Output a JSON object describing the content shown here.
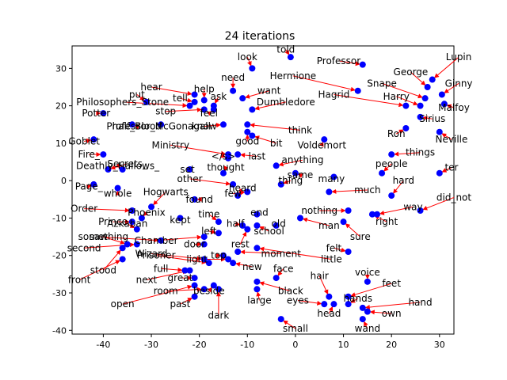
{
  "chart_data": {
    "type": "scatter",
    "title": "24 iterations",
    "xlabel": "",
    "ylabel": "",
    "xlim": [
      -46.5,
      33
    ],
    "ylim": [
      -41,
      36
    ],
    "x_ticks": [
      -40,
      -30,
      -20,
      -10,
      0,
      10,
      20,
      30
    ],
    "y_ticks": [
      -40,
      -30,
      -20,
      -10,
      0,
      10,
      20,
      30
    ],
    "grid": false,
    "point_color": "#0000ff",
    "arrow_color": "#ff0000",
    "text_color": "#000000",
    "points": [
      {
        "word": "told",
        "x": -1,
        "y": 33,
        "lx": -2,
        "ly": 35
      },
      {
        "word": "Professor",
        "x": 14,
        "y": 31,
        "lx": 9,
        "ly": 32
      },
      {
        "word": "Lupin",
        "x": 28.5,
        "y": 27,
        "lx": 34,
        "ly": 33
      },
      {
        "word": "look",
        "x": -9,
        "y": 30,
        "lx": -10,
        "ly": 33
      },
      {
        "word": "Hermione",
        "x": 13,
        "y": 24,
        "lx": -0.5,
        "ly": 28
      },
      {
        "word": "George",
        "x": 27.5,
        "y": 25,
        "lx": 24,
        "ly": 29
      },
      {
        "word": "need",
        "x": -13,
        "y": 24,
        "lx": -13,
        "ly": 27.5
      },
      {
        "word": "Ginny",
        "x": 30.5,
        "y": 23,
        "lx": 34,
        "ly": 26
      },
      {
        "word": "Snape",
        "x": 27,
        "y": 22,
        "lx": 18,
        "ly": 26
      },
      {
        "word": "hear",
        "x": -21,
        "y": 23,
        "lx": -30,
        "ly": 25
      },
      {
        "word": "help",
        "x": -19,
        "y": 21.5,
        "lx": -19,
        "ly": 24.5
      },
      {
        "word": "want",
        "x": -11,
        "y": 22,
        "lx": -5.5,
        "ly": 24
      },
      {
        "word": "Hagrid",
        "x": 23,
        "y": 20,
        "lx": 8,
        "ly": 23
      },
      {
        "word": "Harry",
        "x": 26,
        "y": 20,
        "lx": 21,
        "ly": 22.5
      },
      {
        "word": "put",
        "x": -31,
        "y": 21,
        "lx": -33,
        "ly": 23
      },
      {
        "word": "tell",
        "x": -21,
        "y": 21,
        "lx": -24,
        "ly": 22
      },
      {
        "word": "ask",
        "x": -17,
        "y": 20,
        "lx": -16,
        "ly": 22.5
      },
      {
        "word": "Philosophers_Stone",
        "x": -22,
        "y": 20,
        "lx": -36,
        "ly": 21
      },
      {
        "word": "Dumbledore",
        "x": -9,
        "y": 19,
        "lx": -2,
        "ly": 21
      },
      {
        "word": "Malfoy",
        "x": 31,
        "y": 20.5,
        "lx": 33,
        "ly": 19.5
      },
      {
        "word": "stop",
        "x": -19,
        "y": 19,
        "lx": -27,
        "ly": 18.5
      },
      {
        "word": "feel",
        "x": -17,
        "y": 19,
        "lx": -18,
        "ly": 18
      },
      {
        "word": "Sirius",
        "x": 26,
        "y": 17,
        "lx": 28.5,
        "ly": 16.5
      },
      {
        "word": "Potter",
        "x": -40,
        "y": 18,
        "lx": -41.5,
        "ly": 18
      },
      {
        "word": "Professor_McGonagall",
        "x": -28,
        "y": 15,
        "lx": -28.5,
        "ly": 14.5
      },
      {
        "word": "half_Blood",
        "x": -34,
        "y": 15,
        "lx": -33,
        "ly": 14.5
      },
      {
        "word": "know",
        "x": -15,
        "y": 15,
        "lx": -19,
        "ly": 14.5
      },
      {
        "word": "think",
        "x": -10,
        "y": 15,
        "lx": 1,
        "ly": 13.5
      },
      {
        "word": "Ron",
        "x": 23,
        "y": 14,
        "lx": 21,
        "ly": 12.5
      },
      {
        "word": "Neville",
        "x": 30,
        "y": 13,
        "lx": 32.5,
        "ly": 11
      },
      {
        "word": "Voldemort",
        "x": 6,
        "y": 11,
        "lx": 5.5,
        "ly": 9.5
      },
      {
        "word": "good",
        "x": -10,
        "y": 13,
        "lx": -10,
        "ly": 10.5
      },
      {
        "word": "bit",
        "x": -9,
        "y": 12,
        "lx": -4,
        "ly": 10
      },
      {
        "word": "Goblet",
        "x": -42,
        "y": 11,
        "lx": -44,
        "ly": 10.5
      },
      {
        "word": "Ministry",
        "x": -14,
        "y": 7,
        "lx": -26,
        "ly": 9.5
      },
      {
        "word": "Fire_",
        "x": -40,
        "y": 7,
        "lx": -43,
        "ly": 7
      },
      {
        "word": "things",
        "x": 20,
        "y": 7,
        "lx": 26,
        "ly": 7.5
      },
      {
        "word": "last",
        "x": -12,
        "y": 7,
        "lx": -8,
        "ly": 6.5
      },
      {
        "word": "</s>",
        "x": -14,
        "y": 6,
        "lx": -15,
        "ly": 6.5
      },
      {
        "word": "anything",
        "x": -4,
        "y": 4,
        "lx": 1.5,
        "ly": 5.5
      },
      {
        "word": "Secrets_",
        "x": -39,
        "y": 3,
        "lx": -35,
        "ly": 4.5
      },
      {
        "word": "Deathly_Hallows_",
        "x": -36,
        "y": 3,
        "lx": -37,
        "ly": 4
      },
      {
        "word": "people",
        "x": 18,
        "y": 2,
        "lx": 20,
        "ly": 4.5
      },
      {
        "word": "ter",
        "x": 30,
        "y": 2,
        "lx": 32.5,
        "ly": 3.5
      },
      {
        "word": "set",
        "x": -22,
        "y": 3,
        "lx": -22.5,
        "ly": 3
      },
      {
        "word": "thought",
        "x": -15,
        "y": 2,
        "lx": -14.5,
        "ly": 3.5
      },
      {
        "word": "same",
        "x": 0,
        "y": 2,
        "lx": 1,
        "ly": 1.5
      },
      {
        "word": "many",
        "x": 8,
        "y": 1,
        "lx": 7.5,
        "ly": 0.5
      },
      {
        "word": "other",
        "x": -13,
        "y": -1,
        "lx": -22,
        "ly": 0.5
      },
      {
        "word": "thing",
        "x": -3,
        "y": -1,
        "lx": -1,
        "ly": 0
      },
      {
        "word": "hard",
        "x": 20,
        "y": -4,
        "lx": 22.5,
        "ly": 0
      },
      {
        "word": "Page_",
        "x": -42,
        "y": -1,
        "lx": -43,
        "ly": -1.5
      },
      {
        "word": "whole",
        "x": -37,
        "y": -2,
        "lx": -37,
        "ly": -3.5
      },
      {
        "word": "Hogwarts",
        "x": -30,
        "y": -7,
        "lx": -27,
        "ly": -3
      },
      {
        "word": "few",
        "x": -10,
        "y": -3,
        "lx": -13,
        "ly": -3.5
      },
      {
        "word": "heard",
        "x": -12,
        "y": -4,
        "lx": -11,
        "ly": -2
      },
      {
        "word": "much",
        "x": 7,
        "y": -3,
        "lx": 15,
        "ly": -2.5
      },
      {
        "word": "did_not",
        "x": 26,
        "y": -8,
        "lx": 33,
        "ly": -4.5
      },
      {
        "word": "found",
        "x": -21,
        "y": -5,
        "lx": -20,
        "ly": -5
      },
      {
        "word": "way",
        "x": 17,
        "y": -9,
        "lx": 24.5,
        "ly": -7
      },
      {
        "word": "Order",
        "x": -34,
        "y": -8,
        "lx": -44,
        "ly": -7.5
      },
      {
        "word": "Phoenix",
        "x": -32,
        "y": -10,
        "lx": -31,
        "ly": -8.5
      },
      {
        "word": "end",
        "x": -8,
        "y": -9,
        "lx": -7.5,
        "ly": -8.5
      },
      {
        "word": "nothing",
        "x": 11,
        "y": -8,
        "lx": 5,
        "ly": -8
      },
      {
        "word": "time",
        "x": -16,
        "y": -11,
        "lx": -18,
        "ly": -9
      },
      {
        "word": "kept",
        "x": -24,
        "y": -10,
        "lx": -24,
        "ly": -10.5
      },
      {
        "word": "right",
        "x": 16,
        "y": -9,
        "lx": 19,
        "ly": -11
      },
      {
        "word": "Prince",
        "x": -34,
        "y": -11,
        "lx": -38,
        "ly": -11
      },
      {
        "word": "Azkaban",
        "x": -33,
        "y": -13,
        "lx": -35,
        "ly": -11.5
      },
      {
        "word": "half",
        "x": -11,
        "y": -12,
        "lx": -12.5,
        "ly": -11.5
      },
      {
        "word": "old",
        "x": -4,
        "y": -12,
        "lx": -3.5,
        "ly": -11.5
      },
      {
        "word": "man",
        "x": 1,
        "y": -10,
        "lx": 7,
        "ly": -12
      },
      {
        "word": "left",
        "x": -16,
        "y": -14,
        "lx": -18,
        "ly": -13.5
      },
      {
        "word": "school",
        "x": -8,
        "y": -12,
        "lx": -5.5,
        "ly": -13.5
      },
      {
        "word": "sure",
        "x": 10,
        "y": -11,
        "lx": 13.5,
        "ly": -15
      },
      {
        "word": "something",
        "x": -35,
        "y": -17,
        "lx": -40,
        "ly": -15
      },
      {
        "word": "saw",
        "x": -28,
        "y": -16,
        "lx": -41,
        "ly": -15
      },
      {
        "word": "second",
        "x": -33,
        "y": -17,
        "lx": -44,
        "ly": -18
      },
      {
        "word": "Chamber",
        "x": -19,
        "y": -15,
        "lx": -29,
        "ly": -16
      },
      {
        "word": "door",
        "x": -19,
        "y": -17,
        "lx": -21,
        "ly": -17
      },
      {
        "word": "rest",
        "x": -10,
        "y": -13,
        "lx": -11.5,
        "ly": -17
      },
      {
        "word": "felt",
        "x": 11,
        "y": -19,
        "lx": 8,
        "ly": -18
      },
      {
        "word": "Wizard",
        "x": -19,
        "y": -21,
        "lx": -30,
        "ly": -19.5
      },
      {
        "word": "Prisoner",
        "x": -18,
        "y": -22,
        "lx": -29,
        "ly": -20
      },
      {
        "word": "moment",
        "x": -12,
        "y": -19,
        "lx": -3,
        "ly": -19.5
      },
      {
        "word": "top",
        "x": -15,
        "y": -20,
        "lx": -16,
        "ly": -20
      },
      {
        "word": "light",
        "x": -14,
        "y": -21,
        "lx": -20.5,
        "ly": -21
      },
      {
        "word": "little",
        "x": -8,
        "y": -18,
        "lx": 7.5,
        "ly": -21
      },
      {
        "word": "full",
        "x": -23,
        "y": -24,
        "lx": -28,
        "ly": -23.5
      },
      {
        "word": "new",
        "x": -13,
        "y": -22,
        "lx": -9,
        "ly": -23
      },
      {
        "word": "stood",
        "x": -36,
        "y": -18,
        "lx": -40,
        "ly": -24
      },
      {
        "word": "face",
        "x": -4,
        "y": -26,
        "lx": -2.5,
        "ly": -23.5
      },
      {
        "word": "front",
        "x": -36,
        "y": -21,
        "lx": -45,
        "ly": -26.5
      },
      {
        "word": "next",
        "x": -22,
        "y": -24,
        "lx": -31,
        "ly": -26.5
      },
      {
        "word": "great",
        "x": -21,
        "y": -26,
        "lx": -24,
        "ly": -26
      },
      {
        "word": "hair",
        "x": 7,
        "y": -31,
        "lx": 5,
        "ly": -25.5
      },
      {
        "word": "voice",
        "x": 15,
        "y": -27,
        "lx": 15,
        "ly": -24.5
      },
      {
        "word": "feet",
        "x": 11,
        "y": -31,
        "lx": 20,
        "ly": -27.5
      },
      {
        "word": "room",
        "x": -19,
        "y": -29,
        "lx": -27,
        "ly": -29.5
      },
      {
        "word": "beside",
        "x": -17,
        "y": -28,
        "lx": -18,
        "ly": -29.5
      },
      {
        "word": "black",
        "x": -8,
        "y": -27,
        "lx": -1,
        "ly": -29.5
      },
      {
        "word": "large",
        "x": -8,
        "y": -29,
        "lx": -7.5,
        "ly": -32
      },
      {
        "word": "eyes",
        "x": 6,
        "y": -33,
        "lx": 0.5,
        "ly": -32
      },
      {
        "word": "hands",
        "x": 11,
        "y": -33,
        "lx": 13,
        "ly": -31.5
      },
      {
        "word": "hand",
        "x": 14,
        "y": -34,
        "lx": 26,
        "ly": -32.5
      },
      {
        "word": "open",
        "x": -21,
        "y": -28,
        "lx": -36,
        "ly": -33
      },
      {
        "word": "past",
        "x": -21,
        "y": -31,
        "lx": -24,
        "ly": -33
      },
      {
        "word": "head",
        "x": 8,
        "y": -33,
        "lx": 7,
        "ly": -35.5
      },
      {
        "word": "own",
        "x": 15,
        "y": -35,
        "lx": 20,
        "ly": -35.5
      },
      {
        "word": "dark",
        "x": -16,
        "y": -29,
        "lx": -16,
        "ly": -36
      },
      {
        "word": "wand",
        "x": 14,
        "y": -37,
        "lx": 15,
        "ly": -39.5
      },
      {
        "word": "small",
        "x": -3,
        "y": -37,
        "lx": 0,
        "ly": -39.5
      }
    ]
  }
}
